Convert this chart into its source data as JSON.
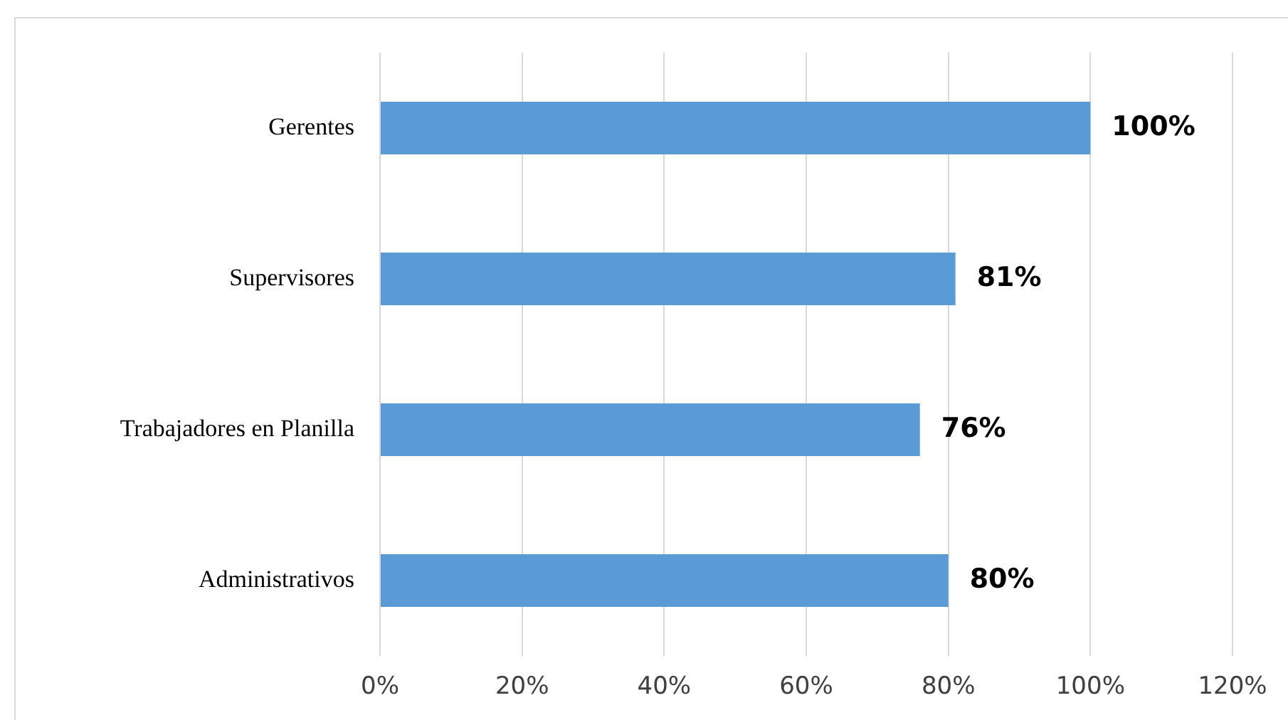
{
  "chart_data": {
    "type": "bar",
    "orientation": "horizontal",
    "categories": [
      "Gerentes",
      "Supervisores",
      "Trabajadores en Planilla",
      "Administrativos"
    ],
    "values": [
      100,
      81,
      76,
      80
    ],
    "value_labels": [
      "100%",
      "81%",
      "76%",
      "80%"
    ],
    "color": "#5b9bd5",
    "xlim": [
      0,
      120
    ],
    "xticks": [
      {
        "value": 0,
        "label": "0%"
      },
      {
        "value": 20,
        "label": "20%"
      },
      {
        "value": 40,
        "label": "40%"
      },
      {
        "value": 60,
        "label": "60%"
      },
      {
        "value": 80,
        "label": "80%"
      },
      {
        "value": 100,
        "label": "100%"
      },
      {
        "value": 120,
        "label": "120%"
      }
    ],
    "grid": "x",
    "legend": false
  }
}
